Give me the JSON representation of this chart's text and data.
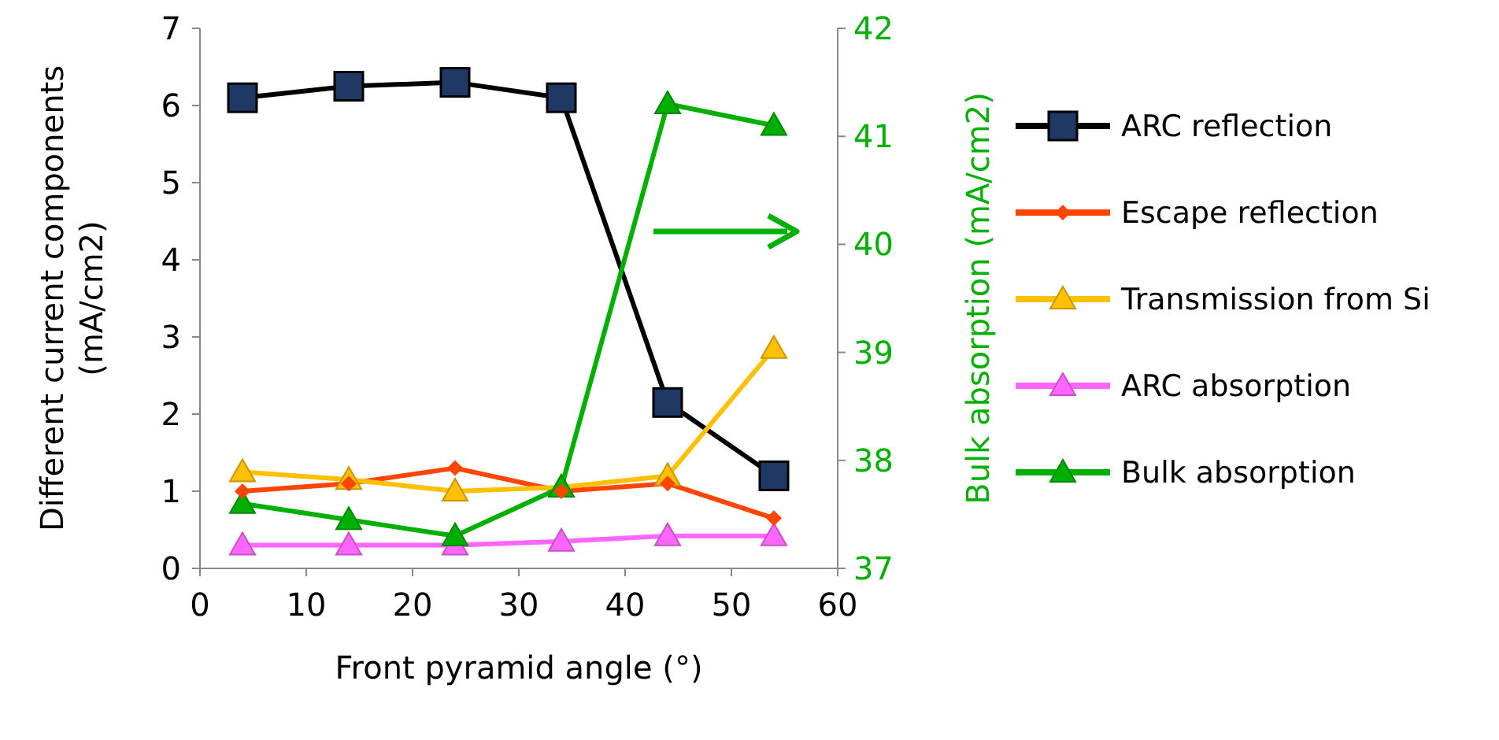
{
  "chart_data": {
    "type": "line",
    "xlabel": "Front pyramid angle (°)",
    "ylabel": "Different current components (mA/cm2)",
    "y2label": "Bulk absorption (mA/cm2)",
    "x": [
      4,
      14,
      24,
      34,
      44,
      54
    ],
    "series": [
      {
        "name": "ARC reflection",
        "color": "#000000",
        "marker": "square",
        "values": [
          6.1,
          6.25,
          6.3,
          6.1,
          2.15,
          1.2
        ]
      },
      {
        "name": "Escape reflection",
        "color": "#ff4500",
        "marker": "diamond",
        "values": [
          1.0,
          1.1,
          1.3,
          1.0,
          1.1,
          0.65
        ]
      },
      {
        "name": "Transmission from Si",
        "color": "#ffc000",
        "marker": "triangle",
        "values": [
          1.25,
          1.15,
          1.0,
          1.05,
          1.2,
          2.85
        ]
      },
      {
        "name": "ARC absorption",
        "color": "#ff66ff",
        "marker": "triangle",
        "values": [
          0.3,
          0.3,
          0.3,
          0.35,
          0.42,
          0.42
        ]
      },
      {
        "name": "Bulk absorption",
        "color": "#00b000",
        "marker": "triangle",
        "axis": "y2",
        "values": [
          37.6,
          37.45,
          37.3,
          37.75,
          41.3,
          41.1
        ]
      }
    ],
    "xlim": [
      0,
      60
    ],
    "xticks": [
      0,
      10,
      20,
      30,
      40,
      50,
      60
    ],
    "ylim": [
      0,
      7
    ],
    "yticks": [
      0,
      1,
      2,
      3,
      4,
      5,
      6,
      7
    ],
    "y2lim": [
      37,
      42
    ],
    "y2ticks": [
      37,
      38,
      39,
      40,
      41,
      42
    ],
    "grid": false,
    "legend": "right",
    "line_style": "solid"
  }
}
